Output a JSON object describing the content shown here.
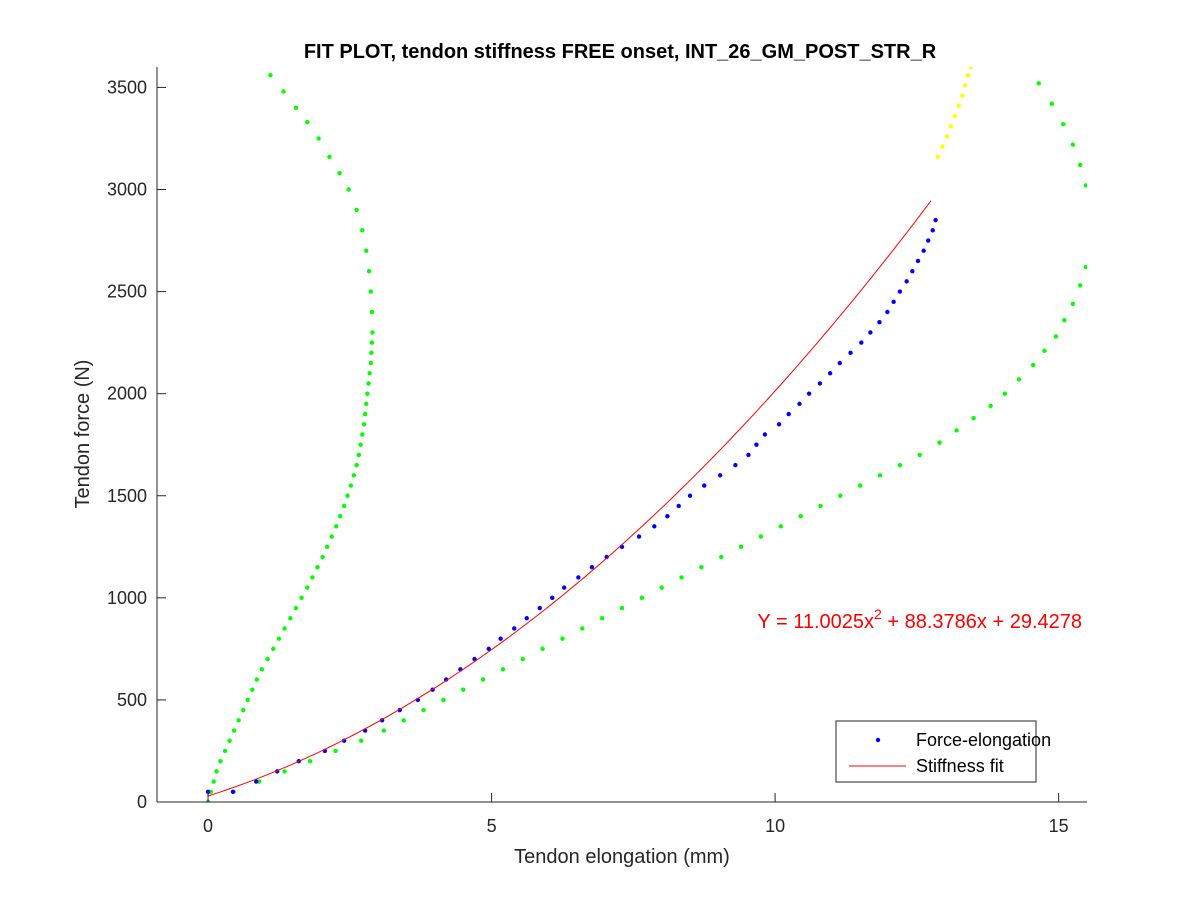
{
  "chart_data": {
    "type": "scatter",
    "title": "FIT PLOT, tendon stiffness FREE onset, INT_26_GM_POST_STR_R",
    "xlabel": "Tendon elongation (mm)",
    "ylabel": "Tendon force (N)",
    "xlim": [
      -0.9,
      15.5
    ],
    "ylim": [
      0,
      3600
    ],
    "xticks": [
      0,
      5,
      10,
      15
    ],
    "xtick_labels": [
      "0",
      "5",
      "10",
      "15"
    ],
    "yticks": [
      0,
      500,
      1000,
      1500,
      2000,
      2500,
      3000,
      3500
    ],
    "ytick_labels": [
      "0",
      "500",
      "1000",
      "1500",
      "2000",
      "2500",
      "3000",
      "3500"
    ],
    "grid": false,
    "legend_position": "bottom-right",
    "equation": {
      "prefix": "Y = 11.0025x",
      "sup": "2",
      "suffix": " + 88.3786x + 29.4278",
      "color": "#ff0000"
    },
    "fit": {
      "a": 11.0025,
      "b": 88.3786,
      "c": 29.4278,
      "x_range": [
        0,
        12.75
      ]
    },
    "series": [
      {
        "name": "Force-elongation",
        "kind": "points",
        "color": "#0000ff",
        "x": [
          0.0,
          0.44,
          0.85,
          1.22,
          1.6,
          2.06,
          2.4,
          2.77,
          3.07,
          3.38,
          3.7,
          3.96,
          4.2,
          4.45,
          4.7,
          4.95,
          5.16,
          5.4,
          5.62,
          5.85,
          6.07,
          6.28,
          6.53,
          6.77,
          7.03,
          7.3,
          7.6,
          7.87,
          8.1,
          8.3,
          8.5,
          8.75,
          9.03,
          9.3,
          9.53,
          9.67,
          9.82,
          10.07,
          10.24,
          10.43,
          10.6,
          10.79,
          10.97,
          11.14,
          11.33,
          11.52,
          11.68,
          11.84,
          11.98,
          12.09,
          12.2,
          12.32,
          12.42,
          12.52,
          12.62,
          12.7,
          12.78,
          12.83
        ],
        "y": [
          50,
          50,
          100,
          150,
          200,
          250,
          300,
          350,
          400,
          450,
          500,
          550,
          600,
          650,
          700,
          750,
          800,
          850,
          900,
          950,
          1000,
          1050,
          1100,
          1150,
          1200,
          1250,
          1300,
          1350,
          1400,
          1450,
          1500,
          1550,
          1600,
          1650,
          1700,
          1750,
          1800,
          1850,
          1900,
          1950,
          2000,
          2050,
          2100,
          2150,
          2200,
          2250,
          2300,
          2350,
          2400,
          2450,
          2500,
          2550,
          2600,
          2650,
          2700,
          2750,
          2800,
          2850
        ]
      },
      {
        "name": "Stiffness fit",
        "kind": "line",
        "color": "#ff0000"
      },
      {
        "name": "",
        "kind": "points",
        "color": "#ffff00",
        "x": [
          12.87,
          12.95,
          13.03,
          13.1,
          13.17,
          13.24,
          13.3,
          13.35,
          13.4,
          13.45,
          13.5,
          13.55
        ],
        "y": [
          3160,
          3210,
          3260,
          3310,
          3360,
          3410,
          3460,
          3510,
          3560,
          3600,
          3620,
          3640
        ]
      },
      {
        "name": "",
        "kind": "points",
        "color": "#00ff00",
        "x": [
          0.0,
          0.05,
          0.1,
          0.15,
          0.22,
          0.3,
          0.38,
          0.46,
          0.54,
          0.62,
          0.7,
          0.78,
          0.86,
          0.95,
          1.05,
          1.15,
          1.25,
          1.35,
          1.45,
          1.55,
          1.65,
          1.75,
          1.84,
          1.93,
          2.02,
          2.1,
          2.18,
          2.26,
          2.33,
          2.4,
          2.46,
          2.52,
          2.57,
          2.62,
          2.66,
          2.69,
          2.72,
          2.75,
          2.77,
          2.79,
          2.81,
          2.83,
          2.85,
          2.87,
          2.88,
          2.89,
          2.9,
          2.89,
          2.87,
          2.84,
          2.79,
          2.72,
          2.62,
          2.48,
          2.32,
          2.14,
          1.95,
          1.75,
          1.55,
          1.33,
          1.1,
          0.9
        ],
        "y": [
          0,
          50,
          100,
          150,
          200,
          250,
          300,
          350,
          400,
          450,
          500,
          550,
          600,
          650,
          700,
          750,
          800,
          850,
          900,
          950,
          1000,
          1050,
          1100,
          1150,
          1200,
          1250,
          1300,
          1350,
          1400,
          1450,
          1500,
          1550,
          1600,
          1650,
          1700,
          1750,
          1800,
          1850,
          1900,
          1950,
          2000,
          2050,
          2100,
          2150,
          2200,
          2250,
          2300,
          2400,
          2500,
          2600,
          2700,
          2800,
          2900,
          3000,
          3080,
          3160,
          3250,
          3330,
          3400,
          3480,
          3560,
          3620
        ]
      },
      {
        "name": "",
        "kind": "points",
        "color": "#00ff00",
        "x": [
          0.0,
          0.45,
          0.9,
          1.35,
          1.8,
          2.25,
          2.7,
          3.1,
          3.45,
          3.8,
          4.15,
          4.5,
          4.85,
          5.2,
          5.55,
          5.9,
          6.25,
          6.6,
          6.95,
          7.3,
          7.65,
          8.0,
          8.35,
          8.7,
          9.05,
          9.4,
          9.75,
          10.1,
          10.45,
          10.8,
          11.15,
          11.5,
          11.85,
          12.2,
          12.55,
          12.9,
          13.2,
          13.5,
          13.8,
          14.05,
          14.3,
          14.55,
          14.75,
          14.95,
          15.1,
          15.25,
          15.38,
          15.48,
          15.55,
          15.58,
          15.55,
          15.48,
          15.38,
          15.25,
          15.08,
          14.88,
          14.65,
          14.4
        ],
        "y": [
          0,
          50,
          100,
          150,
          200,
          250,
          300,
          350,
          400,
          450,
          500,
          550,
          600,
          650,
          700,
          750,
          800,
          850,
          900,
          950,
          1000,
          1050,
          1100,
          1150,
          1200,
          1250,
          1300,
          1350,
          1400,
          1450,
          1500,
          1550,
          1600,
          1650,
          1700,
          1760,
          1820,
          1880,
          1940,
          2000,
          2070,
          2140,
          2210,
          2280,
          2360,
          2440,
          2530,
          2620,
          2720,
          2820,
          2920,
          3020,
          3120,
          3220,
          3320,
          3420,
          3520,
          3620
        ]
      }
    ]
  }
}
